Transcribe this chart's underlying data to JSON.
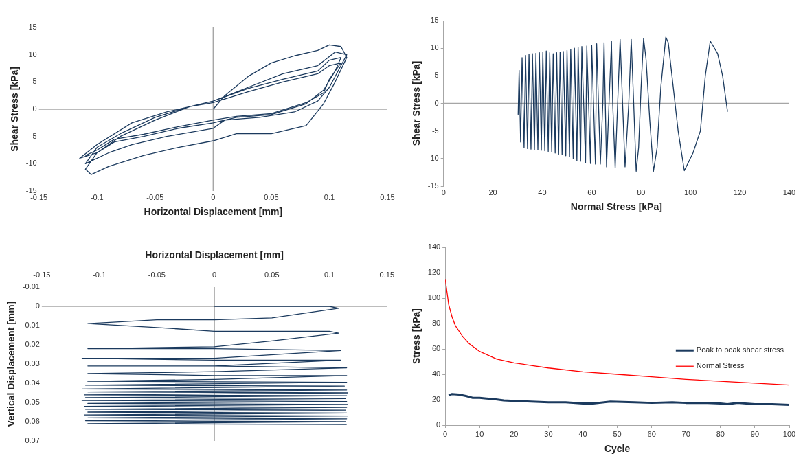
{
  "chart_data": [
    {
      "type": "line",
      "xlabel": "Horizontal Displacement [mm]",
      "ylabel": "Shear Stress [kPa]",
      "xlim": [
        -0.15,
        0.15
      ],
      "xticks": [
        -0.15,
        -0.1,
        -0.05,
        0,
        0.05,
        0.1,
        0.15
      ],
      "ylim": [
        -15,
        15
      ],
      "yticks": [
        -15,
        -10,
        -5,
        0,
        5,
        10,
        15
      ],
      "marker": "none",
      "legend": false,
      "grid": false,
      "ref_lines": [
        {
          "axis": "x",
          "value": 0,
          "color": "#a6a6a6"
        },
        {
          "axis": "y",
          "value": 0,
          "color": "#a6a6a6"
        }
      ],
      "series": [
        {
          "color": "#1b3a5e",
          "x": [
            0,
            0.01,
            0.03,
            0.05,
            0.07,
            0.09,
            0.1,
            0.11,
            0.115,
            0.105,
            0.095,
            0.08,
            0.05,
            0.02,
            0,
            -0.03,
            -0.06,
            -0.09,
            -0.105,
            -0.11,
            -0.1,
            -0.08,
            -0.05,
            -0.02,
            0,
            0.03,
            0.06,
            0.09,
            0.105,
            0.115,
            0.11,
            0.1,
            0.09,
            0.07,
            0.04,
            0.01,
            0,
            -0.04,
            -0.07,
            -0.09,
            -0.11,
            -0.1,
            -0.08,
            -0.05,
            -0.02,
            0,
            0.03,
            0.06,
            0.09,
            0.1,
            0.11,
            0.105,
            0.095,
            0.08,
            0.05,
            0.02,
            0,
            -0.03,
            -0.06,
            -0.085,
            -0.1,
            -0.115,
            -0.1,
            -0.07,
            -0.04,
            -0.02,
            0,
            0.03,
            0.06,
            0.09,
            0.1,
            0.11,
            0.1,
            0.095,
            0.08,
            0.05,
            0.02,
            0,
            -0.03,
            -0.06,
            -0.085,
            -0.1,
            -0.11
          ],
          "values": [
            0,
            2.5,
            6,
            8.5,
            9.8,
            10.8,
            11.8,
            11.5,
            9.5,
            5,
            1,
            -3,
            -4.5,
            -4.5,
            -5.8,
            -7,
            -8.5,
            -10.5,
            -12,
            -11,
            -8,
            -5,
            -2,
            0.5,
            1.5,
            4,
            6.5,
            8,
            10.5,
            10,
            8,
            4,
            1.5,
            -0.5,
            -1.5,
            -2,
            -3.5,
            -5,
            -6.5,
            -8,
            -10,
            -7,
            -4.5,
            -1.5,
            0.5,
            1.5,
            3.8,
            5.5,
            7,
            9,
            9.5,
            7,
            3.5,
            1,
            -1,
            -1.5,
            -2.5,
            -3.5,
            -5,
            -6,
            -8,
            -9,
            -6.5,
            -2.5,
            -0.5,
            0.5,
            1.2,
            3.2,
            5,
            6.5,
            8,
            8.5,
            5.5,
            3,
            1.2,
            -0.8,
            -1.3,
            -2,
            -3.2,
            -4.6,
            -5.5,
            -7.5,
            -8.5
          ]
        }
      ]
    },
    {
      "type": "line",
      "xlabel": "Normal Stress [kPa]",
      "ylabel": "Shear Stress [kPa]",
      "xlim": [
        0,
        140
      ],
      "xticks": [
        0,
        20,
        40,
        60,
        80,
        100,
        120,
        140
      ],
      "ylim": [
        -15,
        15
      ],
      "yticks": [
        -15,
        -10,
        -5,
        0,
        5,
        10,
        15
      ],
      "marker": "none",
      "legend": false,
      "grid": false,
      "ref_lines": [
        {
          "axis": "y",
          "value": 0,
          "color": "#a6a6a6"
        }
      ],
      "series": [
        {
          "color": "#1b3a5e",
          "x": [
            115,
            113,
            111,
            108,
            106,
            104,
            101,
            97.5,
            95,
            93,
            91,
            90,
            88,
            86.5,
            85,
            83.5,
            82,
            81,
            80,
            79,
            78,
            77,
            76,
            75,
            73.5,
            72.5,
            71.5,
            70.5,
            69.5,
            68.5,
            68,
            67,
            66,
            65.5,
            65,
            64.5,
            63.5,
            62,
            61.5,
            60,
            59.5,
            58,
            57.5,
            56,
            55.5,
            54.5,
            54,
            53,
            52.5,
            51.5,
            51,
            50,
            49.5,
            48.5,
            48,
            47.2,
            46.6,
            45.8,
            45.2,
            44.4,
            43.8,
            43,
            42.4,
            41.6,
            41,
            40.2,
            39.6,
            38.8,
            38.2,
            37.4,
            36.8,
            36,
            35.4,
            34.6,
            34,
            33.2,
            32.6,
            31.8,
            31.2,
            30.6,
            30.2,
            30.5
          ],
          "values": [
            -1.5,
            5,
            9,
            11.3,
            5,
            -5,
            -9,
            -12.2,
            -5,
            3,
            11,
            12,
            3,
            -8,
            -12.3,
            -3,
            8,
            11.8,
            3,
            -8,
            -12.3,
            0,
            11.6,
            0,
            -11.5,
            0,
            11.6,
            0,
            -11.7,
            0,
            11.3,
            0,
            -11.5,
            0,
            11,
            0,
            -11,
            10.8,
            -11,
            10.5,
            -10.9,
            10.4,
            -10.8,
            10.3,
            -10.5,
            10.2,
            -10.4,
            10,
            -10,
            9.8,
            -9.7,
            9.6,
            -9.5,
            9.4,
            -9.3,
            9.3,
            -9.2,
            9.2,
            -9,
            9,
            -8.8,
            9.2,
            -8.7,
            9.5,
            -8.6,
            9.3,
            -8.5,
            9.2,
            -8.4,
            9.1,
            -8.4,
            9,
            -8.3,
            8.9,
            -8.2,
            8.7,
            -8,
            8.3,
            -7,
            6,
            -2,
            1.5
          ]
        }
      ]
    },
    {
      "type": "line",
      "xlabel": "Horizontal Displacement [mm]",
      "ylabel": "Vertical Displacement [mm]",
      "xlim": [
        -0.15,
        0.15
      ],
      "xticks": [
        -0.15,
        -0.1,
        -0.05,
        0,
        0.05,
        0.1,
        0.15
      ],
      "ylim": [
        0.07,
        -0.01
      ],
      "yticks": [
        -0.01,
        0,
        0.01,
        0.02,
        0.03,
        0.04,
        0.05,
        0.06,
        0.07
      ],
      "marker": "none",
      "legend": false,
      "grid": false,
      "ref_lines": [
        {
          "axis": "x",
          "value": 0,
          "color": "#a6a6a6"
        },
        {
          "axis": "y",
          "value": 0,
          "color": "#a6a6a6"
        }
      ],
      "series": [
        {
          "color": "#1b3a5e",
          "x": [
            0,
            0.1,
            0.108,
            0.05,
            0,
            -0.05,
            -0.11,
            -0.05,
            0,
            0.1,
            0.108,
            0.05,
            0,
            -0.11,
            0,
            0.11,
            0,
            -0.115,
            0,
            0.11,
            0,
            -0.11,
            0,
            0.115,
            0,
            -0.11,
            0,
            0.115,
            0,
            -0.11,
            0.115,
            -0.112,
            0.113,
            -0.115,
            0.115,
            -0.11,
            0.116,
            -0.113,
            0.115,
            -0.112,
            0.114,
            -0.115,
            0.115,
            -0.11,
            0.116,
            -0.113,
            0.115,
            -0.112,
            0.114,
            -0.11,
            0.115,
            -0.113,
            0.116,
            -0.11,
            0.115,
            -0.112,
            0.114,
            -0.11,
            0.115
          ],
          "values": [
            0,
            0,
            0.001,
            0.006,
            0.007,
            0.007,
            0.009,
            0.011,
            0.013,
            0.013,
            0.014,
            0.018,
            0.021,
            0.022,
            0.022,
            0.023,
            0.027,
            0.027,
            0.028,
            0.028,
            0.031,
            0.031,
            0.031,
            0.032,
            0.034,
            0.035,
            0.036,
            0.036,
            0.038,
            0.039,
            0.0395,
            0.041,
            0.0415,
            0.043,
            0.0435,
            0.0445,
            0.045,
            0.046,
            0.0465,
            0.0475,
            0.048,
            0.049,
            0.0495,
            0.0505,
            0.051,
            0.052,
            0.0525,
            0.0535,
            0.054,
            0.055,
            0.0555,
            0.0565,
            0.057,
            0.058,
            0.0585,
            0.0595,
            0.06,
            0.061,
            0.0615
          ]
        }
      ]
    },
    {
      "type": "line",
      "xlabel": "Cycle",
      "ylabel": "Stress [kPa]",
      "xlim": [
        0,
        100
      ],
      "xticks": [
        0,
        10,
        20,
        30,
        40,
        50,
        60,
        70,
        80,
        90,
        100
      ],
      "ylim": [
        0,
        140
      ],
      "yticks": [
        0,
        20,
        40,
        60,
        80,
        100,
        120,
        140
      ],
      "marker": "none",
      "legend": "right",
      "grid": false,
      "series": [
        {
          "name": "Peak to peak shear stress",
          "color": "#1b3a5e",
          "x": [
            1,
            2,
            4,
            6,
            8,
            10,
            12,
            14,
            17,
            20,
            25,
            30,
            35,
            40,
            43,
            48,
            55,
            60,
            66,
            70,
            75,
            80,
            82,
            85,
            90,
            95,
            100
          ],
          "values": [
            23.5,
            24.5,
            24,
            23,
            21.5,
            21.5,
            21,
            20.5,
            19.5,
            19,
            18.5,
            18,
            18,
            17,
            17,
            18.5,
            18,
            17.5,
            18,
            17.5,
            17.5,
            17,
            16.5,
            17.5,
            16.5,
            16.5,
            16
          ]
        },
        {
          "name": "Normal Stress",
          "color": "#ff0000",
          "x": [
            0,
            1,
            2,
            3,
            5,
            7,
            10,
            15,
            20,
            25,
            30,
            40,
            50,
            60,
            70,
            80,
            90,
            100
          ],
          "values": [
            115,
            95,
            85,
            78,
            70,
            64,
            58,
            52,
            49,
            47,
            45,
            42,
            40,
            38,
            36,
            34.5,
            33,
            31.5
          ]
        }
      ]
    }
  ]
}
